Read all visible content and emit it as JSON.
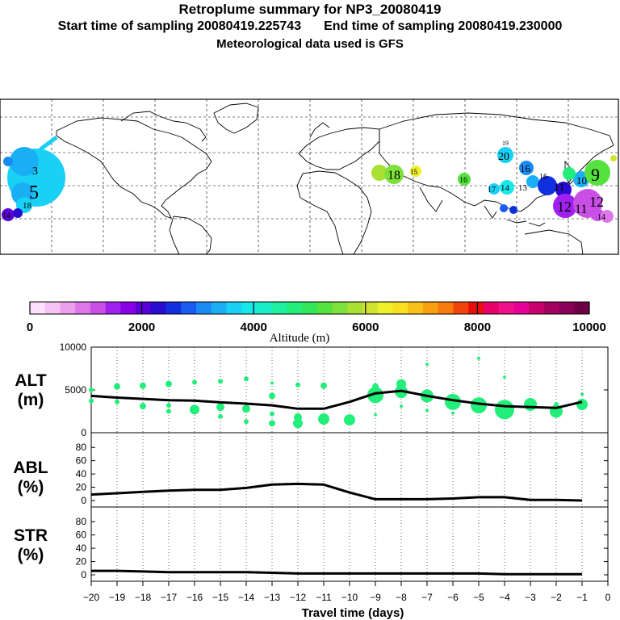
{
  "header": {
    "title": "Retroplume summary for NP3_20080419",
    "start_label": "Start time of sampling 20080419.225743",
    "end_label": "End time of sampling 20080419.230000",
    "met_label": "Meteorological data used is GFS"
  },
  "colorbar": {
    "ticks": [
      "0",
      "2000",
      "4000",
      "6000",
      "8000",
      "10000"
    ],
    "label": "Altitude (m)",
    "colors": [
      "#fde0fd",
      "#f5c2f5",
      "#eaa0ee",
      "#dd77ea",
      "#c94fe6",
      "#a020f0",
      "#8a00e6",
      "#5a00d8",
      "#2a0cd0",
      "#1030e0",
      "#1a5cf0",
      "#1a8af5",
      "#1aaef5",
      "#19d0f5",
      "#18e8e8",
      "#1af0c8",
      "#1ef0a0",
      "#22ee7a",
      "#33e858",
      "#55e23e",
      "#7ee03a",
      "#a8e034",
      "#cfe42e",
      "#eef02a",
      "#f8e020",
      "#f8c018",
      "#f8a010",
      "#f87a0c",
      "#f0440c",
      "#e8100c",
      "#e8006a",
      "#f0108a",
      "#e60096",
      "#c8006e",
      "#a40060",
      "#8a0058",
      "#6e0046"
    ]
  },
  "map": {
    "plume_labels": [
      "5",
      "3",
      "18",
      "14",
      "18",
      "15",
      "16",
      "20",
      "19",
      "17",
      "14",
      "13",
      "16",
      "11",
      "10",
      "9",
      "12",
      "12",
      "11",
      "14",
      "16"
    ],
    "plume_colors": {
      "purple": "#a020f0",
      "blue": "#1030e0",
      "cyan": "#19d0f5",
      "green": "#55e23e",
      "yellow": "#eef02a"
    }
  },
  "chart_data": [
    {
      "type": "line",
      "panel": "ALT",
      "ylabel": "ALT (m)",
      "ylim": [
        0,
        10000
      ],
      "yticks": [
        0,
        5000,
        10000
      ],
      "x": [
        -20,
        -19,
        -18,
        -17,
        -16,
        -15,
        -14,
        -13,
        -12,
        -11,
        -10,
        -9,
        -8,
        -7,
        -6,
        -5,
        -4,
        -3,
        -2,
        -1
      ],
      "series": [
        {
          "name": "mean altitude",
          "values": [
            4300,
            4100,
            3950,
            3800,
            3750,
            3550,
            3400,
            3200,
            2800,
            2800,
            3600,
            4600,
            4900,
            4300,
            3800,
            3400,
            3100,
            3000,
            2900,
            3600
          ]
        }
      ],
      "scatter": [
        {
          "x": -20,
          "y": 5000,
          "s": 3
        },
        {
          "x": -20,
          "y": 3700,
          "s": 3
        },
        {
          "x": -19,
          "y": 5400,
          "s": 4
        },
        {
          "x": -19,
          "y": 3600,
          "s": 3
        },
        {
          "x": -18,
          "y": 5500,
          "s": 4
        },
        {
          "x": -18,
          "y": 3100,
          "s": 4
        },
        {
          "x": -17,
          "y": 5700,
          "s": 4
        },
        {
          "x": -17,
          "y": 3200,
          "s": 3
        },
        {
          "x": -17,
          "y": 2500,
          "s": 3
        },
        {
          "x": -16,
          "y": 5900,
          "s": 3
        },
        {
          "x": -16,
          "y": 2700,
          "s": 6
        },
        {
          "x": -15,
          "y": 6000,
          "s": 3
        },
        {
          "x": -15,
          "y": 3000,
          "s": 5
        },
        {
          "x": -15,
          "y": 1900,
          "s": 3
        },
        {
          "x": -14,
          "y": 6300,
          "s": 3
        },
        {
          "x": -14,
          "y": 2800,
          "s": 5
        },
        {
          "x": -14,
          "y": 1300,
          "s": 3
        },
        {
          "x": -13,
          "y": 5800,
          "s": 2
        },
        {
          "x": -13,
          "y": 4300,
          "s": 4
        },
        {
          "x": -13,
          "y": 1100,
          "s": 4
        },
        {
          "x": -13,
          "y": 2200,
          "s": 3
        },
        {
          "x": -12,
          "y": 5600,
          "s": 3
        },
        {
          "x": -12,
          "y": 1800,
          "s": 5
        },
        {
          "x": -12,
          "y": 1100,
          "s": 6
        },
        {
          "x": -11,
          "y": 5500,
          "s": 4
        },
        {
          "x": -11,
          "y": 1600,
          "s": 7
        },
        {
          "x": -10,
          "y": 1500,
          "s": 7
        },
        {
          "x": -9,
          "y": 5400,
          "s": 4
        },
        {
          "x": -9,
          "y": 4400,
          "s": 10
        },
        {
          "x": -9,
          "y": 2100,
          "s": 2
        },
        {
          "x": -8,
          "y": 5700,
          "s": 6
        },
        {
          "x": -8,
          "y": 4800,
          "s": 8
        },
        {
          "x": -8,
          "y": 3100,
          "s": 2
        },
        {
          "x": -7,
          "y": 8000,
          "s": 2
        },
        {
          "x": -7,
          "y": 4300,
          "s": 8
        },
        {
          "x": -7,
          "y": 2600,
          "s": 2
        },
        {
          "x": -6,
          "y": 3600,
          "s": 10
        },
        {
          "x": -6,
          "y": 2300,
          "s": 2
        },
        {
          "x": -5,
          "y": 8700,
          "s": 2
        },
        {
          "x": -5,
          "y": 3200,
          "s": 10
        },
        {
          "x": -4,
          "y": 6500,
          "s": 2
        },
        {
          "x": -4,
          "y": 2700,
          "s": 12
        },
        {
          "x": -3,
          "y": 3300,
          "s": 8
        },
        {
          "x": -2,
          "y": 3300,
          "s": 3
        },
        {
          "x": -2,
          "y": 2500,
          "s": 8
        },
        {
          "x": -1,
          "y": 3300,
          "s": 7
        },
        {
          "x": -1,
          "y": 4500,
          "s": 2
        }
      ]
    },
    {
      "type": "line",
      "panel": "ABL",
      "ylabel": "ABL (%)",
      "ylim": [
        0,
        90
      ],
      "yticks": [
        0,
        20,
        40,
        60,
        80
      ],
      "x": [
        -20,
        -19,
        -18,
        -17,
        -16,
        -15,
        -14,
        -13,
        -12,
        -11,
        -10,
        -9,
        -8,
        -7,
        -6,
        -5,
        -4,
        -3,
        -2,
        -1
      ],
      "series": [
        {
          "name": "ABL fraction",
          "values": [
            9,
            11,
            13,
            15,
            16,
            16,
            19,
            24,
            25,
            24,
            12,
            2,
            2,
            2,
            3,
            5,
            5,
            1,
            1,
            0
          ]
        }
      ]
    },
    {
      "type": "line",
      "panel": "STR",
      "ylabel": "STR (%)",
      "ylim": [
        0,
        90
      ],
      "yticks": [
        0,
        20,
        40,
        60,
        80
      ],
      "x": [
        -20,
        -19,
        -18,
        -17,
        -16,
        -15,
        -14,
        -13,
        -12,
        -11,
        -10,
        -9,
        -8,
        -7,
        -6,
        -5,
        -4,
        -3,
        -2,
        -1
      ],
      "series": [
        {
          "name": "stratospheric fraction",
          "values": [
            6,
            6,
            5,
            4,
            4,
            4,
            4,
            3,
            2,
            2,
            2,
            2,
            2,
            2,
            2,
            2,
            1,
            1,
            1,
            1
          ]
        }
      ]
    }
  ],
  "axes": {
    "alt_label_1": "ALT",
    "alt_label_2": "(m)",
    "abl_label_1": "ABL",
    "abl_label_2": "(%)",
    "str_label_1": "STR",
    "str_label_2": "(%)",
    "xticks": [
      "−20",
      "−19",
      "−18",
      "−17",
      "−16",
      "−15",
      "−14",
      "−13",
      "−12",
      "−11",
      "−10",
      "−9",
      "−8",
      "−7",
      "−6",
      "−5",
      "−4",
      "−3",
      "−2",
      "−1",
      "0"
    ],
    "xlabel": "Travel time (days)",
    "line_color": "#000000",
    "point_color": "#22ee7a"
  }
}
